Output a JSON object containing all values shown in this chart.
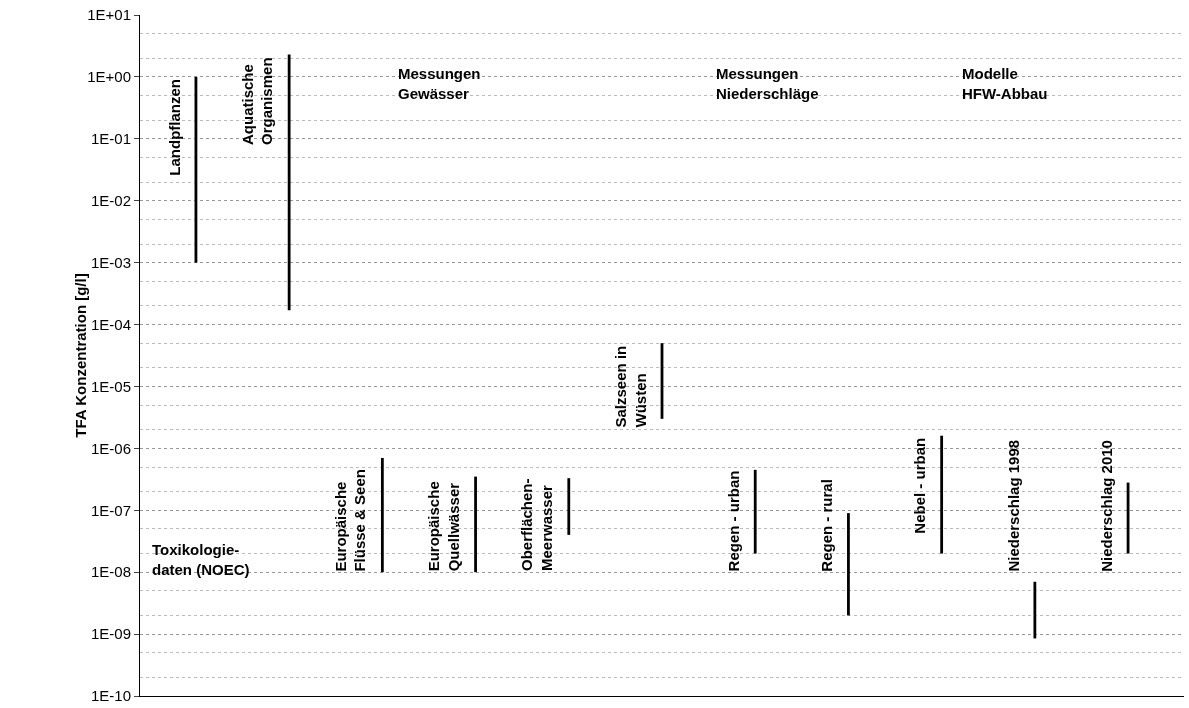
{
  "chart_data": {
    "type": "bar",
    "ylabel": "TFA Konzentration [g/l]",
    "categories": [
      "Landpflanzen",
      "Aquatische\nOrganismen",
      "Europäische\nFlüsse & Seen",
      "Europäische\nQuellwässer",
      "Oberflächen-\nMeerwasser",
      "Salzseen in\nWüsten",
      "Regen - urban",
      "Regen - rural",
      "Nebel - urban",
      "Niederschlag 1998",
      "Niederschlag 2010"
    ],
    "base": [
      0.001,
      0.00017,
      1e-08,
      1e-08,
      4e-08,
      3e-06,
      2e-08,
      2e-09,
      2e-08,
      8.5e-10,
      2e-08
    ],
    "values": [
      0.999,
      2.2998,
      6.9e-07,
      3.4e-07,
      2.9e-07,
      4.7e-05,
      4.3e-07,
      8.8e-08,
      1.58e-06,
      6.15e-09,
      2.6e-07
    ],
    "color": "#000000",
    "log": "y",
    "ylim": [
      1e-10,
      10
    ],
    "yticks": [
      {
        "value": 1e-10,
        "label": "1E-10"
      },
      {
        "value": 1e-09,
        "label": "1E-09"
      },
      {
        "value": 1e-08,
        "label": "1E-08"
      },
      {
        "value": 1e-07,
        "label": "1E-07"
      },
      {
        "value": 1e-06,
        "label": "1E-06"
      },
      {
        "value": 1e-05,
        "label": "1E-05"
      },
      {
        "value": 0.0001,
        "label": "1E-04"
      },
      {
        "value": 0.001,
        "label": "1E-03"
      },
      {
        "value": 0.01,
        "label": "1E-02"
      },
      {
        "value": 0.1,
        "label": "1E-01"
      },
      {
        "value": 1,
        "label": "1E+00"
      },
      {
        "value": 10,
        "label": "1E+01"
      }
    ],
    "grid": "y",
    "tick_labels": "y",
    "annotations": [
      "Toxikologie-\ndaten (NOEC)",
      "Messungen\nGewässer",
      "Messungen\nNiederschläge",
      "Modelle\nHFW-Abbau"
    ]
  }
}
